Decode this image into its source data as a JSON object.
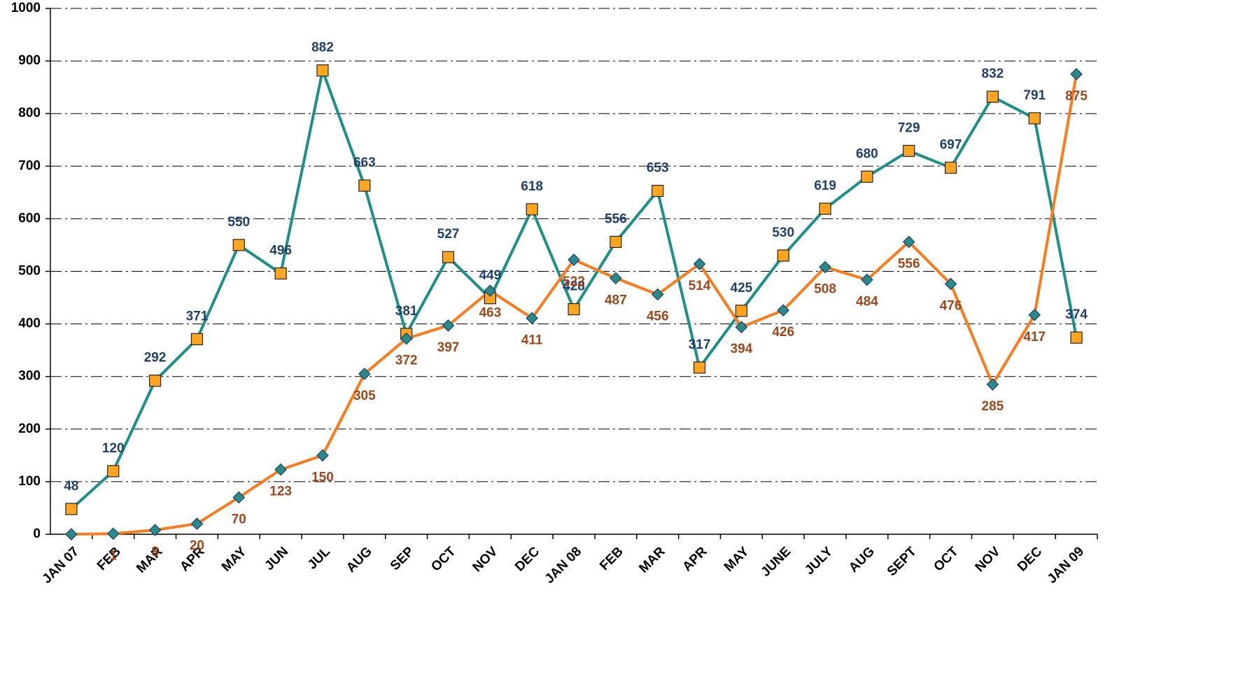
{
  "chart_data": {
    "type": "line",
    "categories": [
      "JAN 07",
      "FEB",
      "MAR",
      "APR",
      "MAY",
      "JUN",
      "JUL",
      "AUG",
      "SEP",
      "OCT",
      "NOV",
      "DEC",
      "JAN 08",
      "FEB",
      "MAR",
      "APR",
      "MAY",
      "JUNE",
      "JULY",
      "AUG",
      "SEPT",
      "OCT",
      "NOV",
      "DEC",
      "JAN 09"
    ],
    "series": [
      {
        "color": "#1b8f88",
        "marker": "square",
        "marker_color": "#ffa520",
        "label_color": "#1f3f6e",
        "values": [
          48,
          120,
          292,
          371,
          550,
          496,
          882,
          663,
          381,
          527,
          449,
          618,
          428,
          556,
          653,
          317,
          425,
          530,
          619,
          680,
          729,
          697,
          832,
          791,
          374
        ]
      },
      {
        "color": "#ff7a1a",
        "marker": "diamond",
        "marker_color": "#2a8a8a",
        "label_color": "#a0461a",
        "values": [
          0,
          1,
          8,
          20,
          70,
          123,
          150,
          305,
          372,
          397,
          463,
          411,
          522,
          487,
          456,
          514,
          394,
          426,
          508,
          484,
          556,
          476,
          285,
          417,
          875
        ],
        "value_labels": [
          null,
          "1",
          "8",
          "20",
          "70",
          "123",
          "150",
          "305",
          "372",
          "397",
          "463",
          "411",
          "522",
          "487",
          "456",
          "514",
          "394",
          "426",
          "508",
          "484",
          "556",
          "476",
          "285",
          "417",
          "875"
        ]
      }
    ],
    "ylim": [
      0,
      1000
    ],
    "yticks": [
      0,
      100,
      200,
      300,
      400,
      500,
      600,
      700,
      800,
      900,
      1000
    ],
    "grid": true
  }
}
